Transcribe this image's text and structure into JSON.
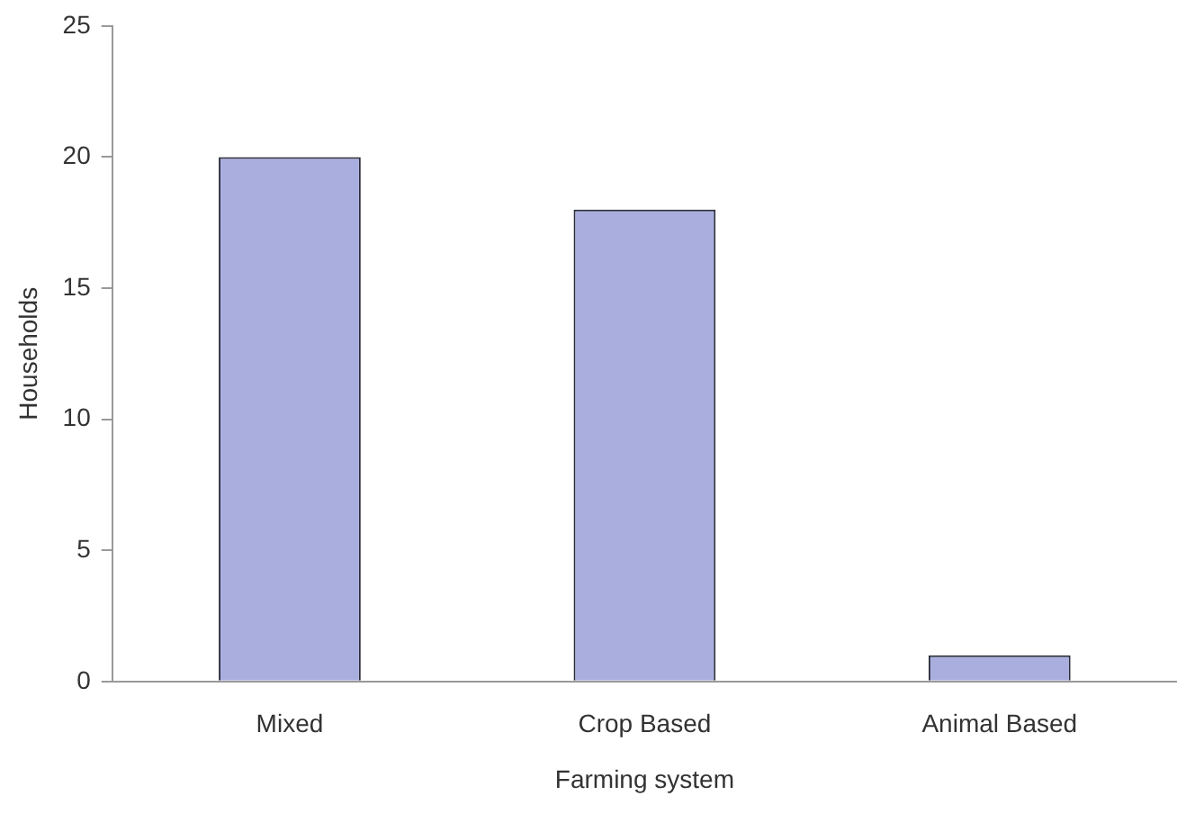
{
  "chart_data": {
    "type": "bar",
    "xlabel": "Farming system",
    "ylabel": "Households",
    "categories": [
      "Mixed",
      "Crop Based",
      "Animal Based"
    ],
    "values": [
      20,
      18,
      1
    ],
    "color": "#a9aedf",
    "ylim": [
      0,
      25
    ],
    "yticks": [
      0,
      5,
      10,
      15,
      20,
      25
    ],
    "grid": false,
    "legend": false
  }
}
